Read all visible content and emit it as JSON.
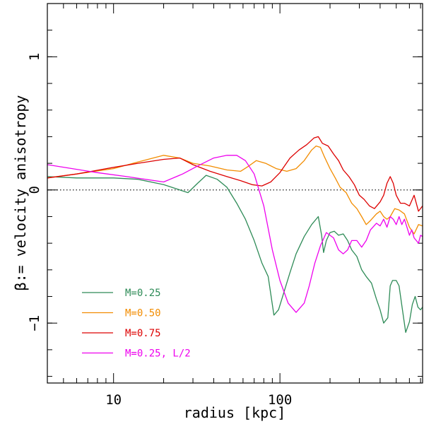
{
  "chart_data": {
    "type": "line",
    "title": "",
    "xlabel": "radius  [kpc]",
    "ylabel": "β:= velocity anisotropy",
    "xscale": "log",
    "xlim": [
      4,
      720
    ],
    "ylim": [
      -1.45,
      1.4
    ],
    "x_tick_labels": [
      {
        "value": 10,
        "label": "10"
      },
      {
        "value": 100,
        "label": "100"
      }
    ],
    "y_tick_labels": [
      {
        "value": 1,
        "label": "1"
      },
      {
        "value": 0,
        "label": "0"
      },
      {
        "value": -1,
        "label": "−1"
      }
    ],
    "x_minor_ticks": [
      5,
      6,
      7,
      8,
      9,
      20,
      30,
      40,
      50,
      60,
      70,
      80,
      90,
      200,
      300,
      400,
      500,
      600,
      700
    ],
    "y_minor_step": 0.2,
    "reference_line": {
      "y": 0,
      "style": "dotted"
    },
    "legend_position": "bottom-left",
    "series": [
      {
        "name": "M=0.25",
        "color": "#2e8b57",
        "x": [
          4,
          6,
          10,
          14,
          20,
          28,
          32,
          36,
          42,
          48,
          55,
          62,
          70,
          78,
          85,
          92,
          98,
          105,
          115,
          125,
          140,
          155,
          170,
          178,
          183,
          190,
          200,
          212,
          225,
          240,
          255,
          270,
          290,
          310,
          330,
          355,
          380,
          400,
          420,
          445,
          460,
          475,
          500,
          520,
          545,
          570,
          600,
          625,
          650,
          675,
          700,
          720
        ],
        "y": [
          0.1,
          0.09,
          0.09,
          0.08,
          0.04,
          -0.02,
          0.05,
          0.11,
          0.08,
          0.02,
          -0.1,
          -0.22,
          -0.38,
          -0.55,
          -0.65,
          -0.94,
          -0.9,
          -0.78,
          -0.62,
          -0.48,
          -0.35,
          -0.26,
          -0.2,
          -0.34,
          -0.47,
          -0.38,
          -0.32,
          -0.31,
          -0.34,
          -0.33,
          -0.38,
          -0.45,
          -0.5,
          -0.6,
          -0.65,
          -0.7,
          -0.82,
          -0.9,
          -1.0,
          -0.96,
          -0.72,
          -0.68,
          -0.68,
          -0.72,
          -0.9,
          -1.07,
          -0.99,
          -0.86,
          -0.8,
          -0.88,
          -0.9,
          -0.88
        ]
      },
      {
        "name": "M=0.50",
        "color": "#f28c00",
        "x": [
          4,
          6,
          10,
          14,
          20,
          25,
          30,
          38,
          48,
          58,
          65,
          72,
          82,
          95,
          110,
          125,
          140,
          155,
          165,
          175,
          185,
          200,
          215,
          230,
          250,
          270,
          290,
          310,
          330,
          350,
          380,
          400,
          420,
          440,
          460,
          490,
          520,
          560,
          600,
          640,
          680,
          720
        ],
        "y": [
          0.09,
          0.12,
          0.16,
          0.21,
          0.26,
          0.24,
          0.2,
          0.18,
          0.15,
          0.14,
          0.18,
          0.22,
          0.2,
          0.16,
          0.14,
          0.16,
          0.22,
          0.3,
          0.33,
          0.32,
          0.25,
          0.16,
          0.09,
          0.02,
          -0.02,
          -0.1,
          -0.14,
          -0.2,
          -0.26,
          -0.23,
          -0.18,
          -0.16,
          -0.2,
          -0.22,
          -0.2,
          -0.14,
          -0.15,
          -0.18,
          -0.28,
          -0.33,
          -0.26,
          -0.27
        ]
      },
      {
        "name": "M=0.75",
        "color": "#dd0000",
        "x": [
          4,
          6,
          10,
          14,
          20,
          25,
          30,
          38,
          48,
          58,
          68,
          78,
          88,
          100,
          115,
          130,
          145,
          160,
          170,
          180,
          195,
          210,
          225,
          240,
          260,
          280,
          300,
          320,
          345,
          370,
          400,
          420,
          440,
          460,
          480,
          500,
          530,
          560,
          600,
          640,
          680,
          720
        ],
        "y": [
          0.09,
          0.12,
          0.17,
          0.2,
          0.23,
          0.24,
          0.19,
          0.14,
          0.1,
          0.07,
          0.04,
          0.03,
          0.06,
          0.13,
          0.24,
          0.3,
          0.34,
          0.39,
          0.4,
          0.35,
          0.33,
          0.27,
          0.22,
          0.15,
          0.1,
          0.04,
          -0.04,
          -0.07,
          -0.12,
          -0.14,
          -0.09,
          -0.04,
          0.05,
          0.1,
          0.05,
          -0.04,
          -0.1,
          -0.1,
          -0.12,
          -0.04,
          -0.16,
          -0.12
        ]
      },
      {
        "name": "M=0.25, L/2",
        "color": "#ee00ee",
        "x": [
          4,
          8,
          12,
          20,
          26,
          32,
          40,
          48,
          55,
          62,
          70,
          80,
          90,
          100,
          112,
          125,
          140,
          150,
          162,
          175,
          190,
          210,
          225,
          240,
          255,
          270,
          290,
          310,
          330,
          350,
          380,
          400,
          420,
          440,
          460,
          480,
          500,
          520,
          540,
          560,
          580,
          600,
          620,
          640,
          660,
          680,
          700,
          720
        ],
        "y": [
          0.19,
          0.13,
          0.1,
          0.06,
          0.12,
          0.18,
          0.24,
          0.26,
          0.26,
          0.22,
          0.12,
          -0.12,
          -0.45,
          -0.68,
          -0.85,
          -0.92,
          -0.85,
          -0.72,
          -0.55,
          -0.42,
          -0.32,
          -0.36,
          -0.45,
          -0.48,
          -0.45,
          -0.38,
          -0.38,
          -0.43,
          -0.38,
          -0.3,
          -0.25,
          -0.27,
          -0.22,
          -0.28,
          -0.2,
          -0.22,
          -0.26,
          -0.2,
          -0.26,
          -0.22,
          -0.28,
          -0.34,
          -0.3,
          -0.36,
          -0.38,
          -0.4,
          -0.34,
          -0.35
        ]
      }
    ]
  }
}
